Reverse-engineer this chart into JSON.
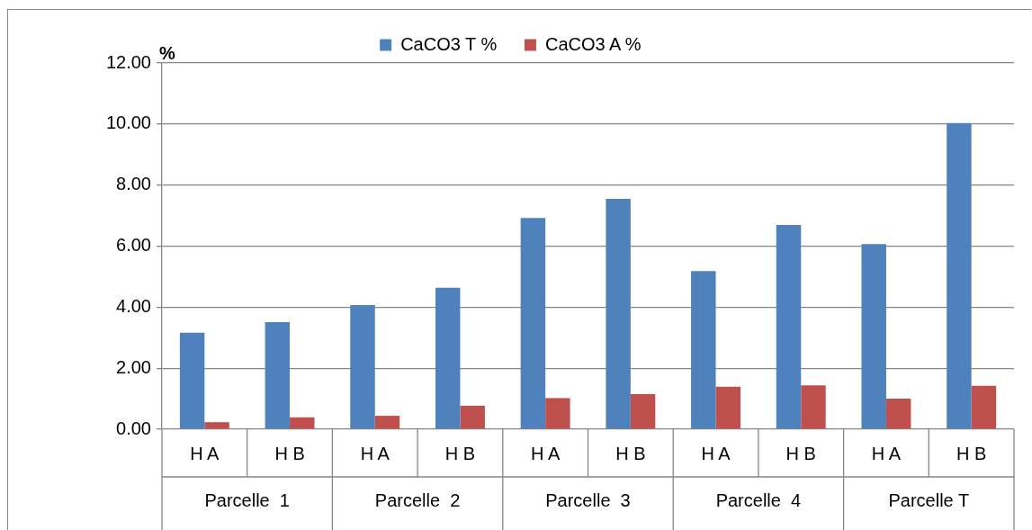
{
  "chart_data": {
    "type": "bar",
    "ylabel": "%",
    "categories": [
      "H A",
      "H B",
      "H A",
      "H B",
      "H A",
      "H B",
      "H A",
      "H B",
      "H A",
      "H B"
    ],
    "series": [
      {
        "name": "CaCO3 T %",
        "color": "#4f81bd",
        "values": [
          3.16,
          3.51,
          4.07,
          4.64,
          6.92,
          7.55,
          5.18,
          6.69,
          6.07,
          10.03
        ]
      },
      {
        "name": "CaCO3 A %",
        "color": "#c0504d",
        "values": [
          0.23,
          0.39,
          0.44,
          0.77,
          1.02,
          1.15,
          1.39,
          1.44,
          1.0,
          1.42
        ]
      }
    ],
    "annotations": [
      "Parcelle  1",
      "Parcelle  2",
      "Parcelle  3",
      "Parcelle  4",
      "Parcelle T"
    ],
    "ylim": [
      0,
      12
    ],
    "yticks": [
      {
        "value": 0,
        "label": "0.00"
      },
      {
        "value": 2,
        "label": "2.00"
      },
      {
        "value": 4,
        "label": "4.00"
      },
      {
        "value": 6,
        "label": "6.00"
      },
      {
        "value": 8,
        "label": "8.00"
      },
      {
        "value": 10,
        "label": "10.00"
      },
      {
        "value": 12,
        "label": "12.00"
      }
    ],
    "grid": "y",
    "legend": "top"
  }
}
